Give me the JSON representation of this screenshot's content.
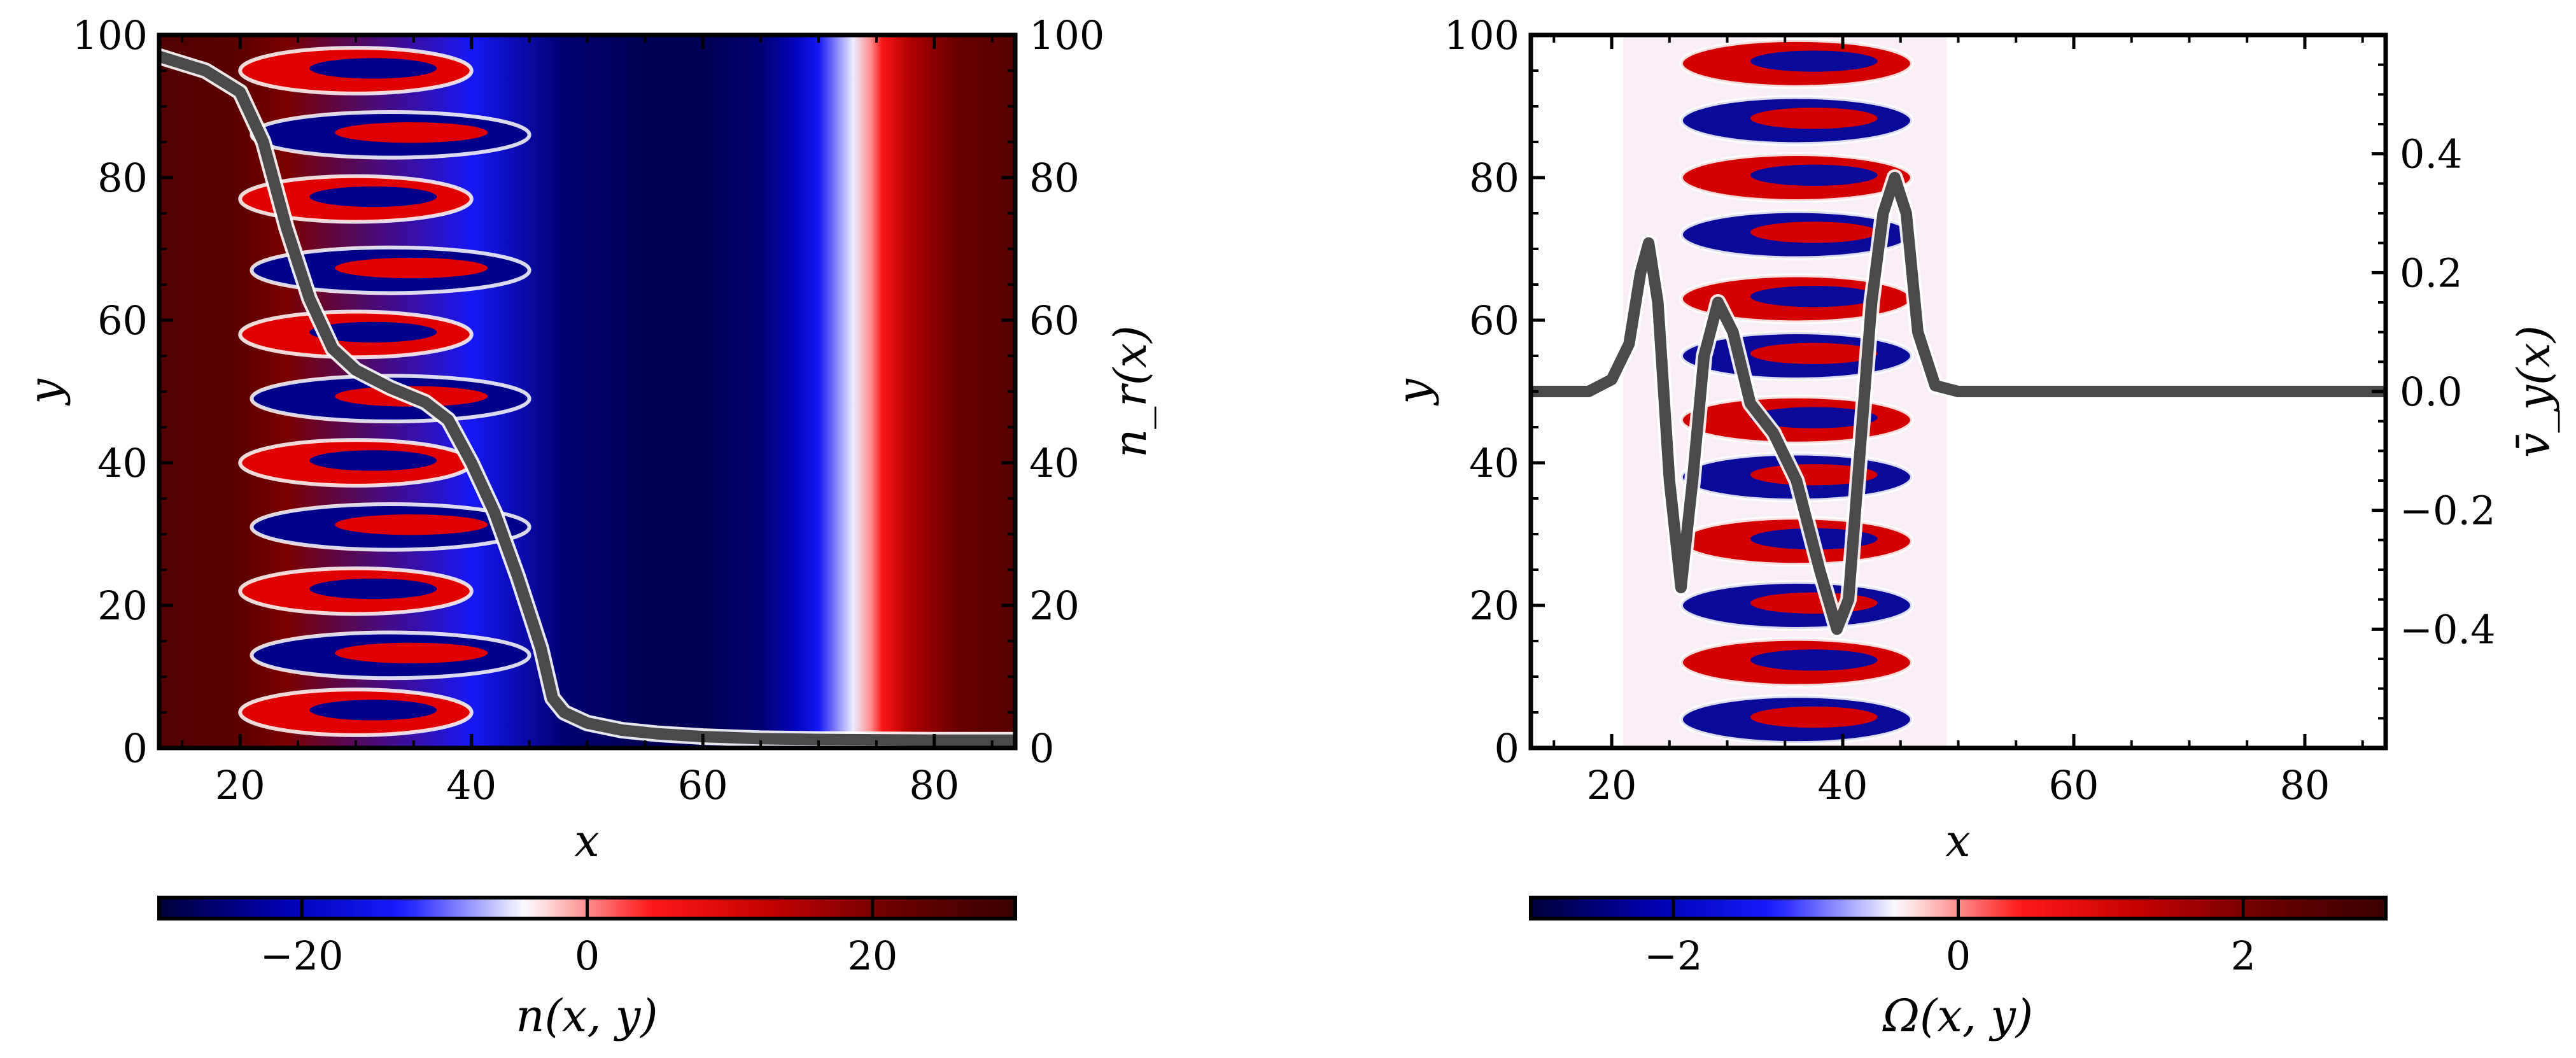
{
  "chart_data": [
    {
      "type": "heatmap",
      "field": "n",
      "xlabel": "x",
      "ylabel": "y",
      "right_ylabel": "n_r(x)",
      "colorbar_label": "n(x, y)",
      "xlim": [
        13,
        87
      ],
      "ylim": [
        0,
        100
      ],
      "right_ylim": [
        0,
        100
      ],
      "xticks": [
        20,
        40,
        60,
        80
      ],
      "yticks": [
        0,
        20,
        40,
        60,
        80,
        100
      ],
      "right_yticks": [
        0,
        20,
        40,
        60,
        80,
        100
      ],
      "colorbar_range": [
        -30,
        30
      ],
      "colorbar_ticks": [
        -20,
        0,
        20
      ],
      "colormap": [
        "#3a0000",
        "#6b0000",
        "#c40000",
        "#ff1a1a",
        "#ffffff",
        "#1a1aff",
        "#0000b0",
        "#00003a"
      ],
      "background_profile": {
        "x": [
          13,
          20,
          24,
          40,
          48,
          55,
          60,
          65,
          68,
          70,
          73,
          74.5,
          75.5,
          78,
          82,
          87
        ],
        "n": [
          26,
          24,
          20,
          -14,
          -26,
          -28,
          -28,
          -26,
          -20,
          -14,
          -5,
          0,
          5,
          15,
          22,
          25
        ]
      },
      "line_profile": {
        "name": "n_r(x)",
        "color": "#4a4a4a",
        "x": [
          13,
          17,
          20,
          22,
          24,
          26,
          28,
          30,
          33,
          36,
          38,
          40,
          42,
          44,
          46,
          47,
          48,
          50,
          53,
          56,
          60,
          65,
          70,
          80,
          87
        ],
        "y": [
          97,
          95,
          92,
          85,
          73,
          63,
          56,
          53,
          50.5,
          48.5,
          46,
          40,
          33,
          24,
          14,
          7,
          5,
          3.5,
          2.5,
          2,
          1.6,
          1.3,
          1.2,
          1.1,
          1.1
        ]
      }
    },
    {
      "type": "heatmap",
      "field": "Omega",
      "xlabel": "x",
      "ylabel": "y",
      "right_ylabel": "v̄_y(x)",
      "colorbar_label": "Ω(x, y)",
      "xlim": [
        13,
        87
      ],
      "ylim": [
        0,
        100
      ],
      "right_ylim": [
        -0.6,
        0.6
      ],
      "xticks": [
        20,
        40,
        60,
        80
      ],
      "yticks": [
        0,
        20,
        40,
        60,
        80,
        100
      ],
      "right_yticks": [
        -0.4,
        -0.2,
        0.0,
        0.2,
        0.4
      ],
      "right_ytick_labels": [
        "−0.4",
        "−0.2",
        "0.0",
        "0.2",
        "0.4"
      ],
      "colorbar_range": [
        -3,
        3
      ],
      "colorbar_ticks": [
        -2,
        0,
        2
      ],
      "colormap": [
        "#3a0000",
        "#6b0000",
        "#c40000",
        "#ff1a1a",
        "#ffffff",
        "#1a1aff",
        "#0000b0",
        "#00003a"
      ],
      "line_profile": {
        "name": "v̄_y(x)",
        "color": "#4a4a4a",
        "x": [
          13,
          18,
          20,
          21.5,
          22.5,
          23.2,
          24,
          25,
          26,
          27,
          28,
          29.2,
          30.5,
          32,
          34,
          36,
          38,
          39.5,
          40.5,
          41.5,
          42.5,
          43.5,
          44.5,
          45.5,
          46.5,
          48,
          50,
          55,
          87
        ],
        "y": [
          0,
          0,
          0.02,
          0.08,
          0.2,
          0.25,
          0.15,
          -0.15,
          -0.33,
          -0.15,
          0.06,
          0.15,
          0.1,
          -0.02,
          -0.07,
          -0.15,
          -0.3,
          -0.4,
          -0.35,
          -0.1,
          0.15,
          0.3,
          0.36,
          0.3,
          0.1,
          0.01,
          0,
          0,
          0
        ]
      }
    }
  ]
}
